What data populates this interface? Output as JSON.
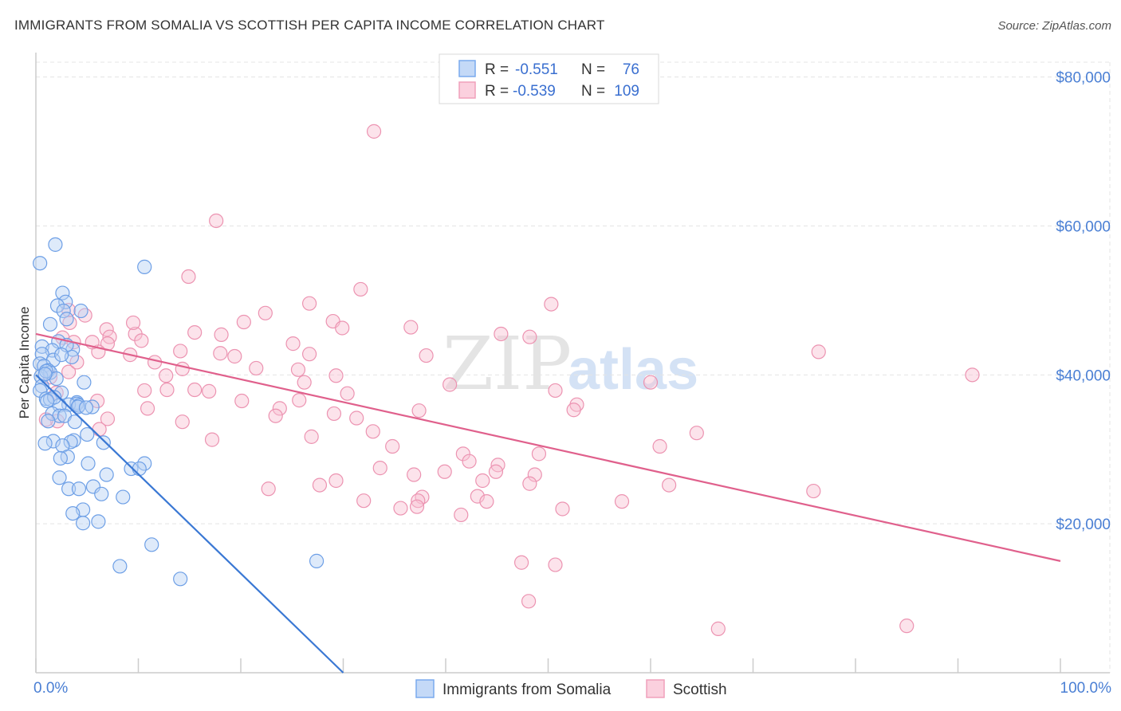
{
  "header": {
    "title": "IMMIGRANTS FROM SOMALIA VS SCOTTISH PER CAPITA INCOME CORRELATION CHART",
    "source": "Source: ZipAtlas.com"
  },
  "watermark": {
    "zip": "ZIP",
    "atlas": "atlas"
  },
  "legend": {
    "rows": [
      {
        "r_label": "R = ",
        "r_value": "-0.551",
        "n_label": "N = ",
        "n_value": "76",
        "color": "#7aaaee"
      },
      {
        "r_label": "R = ",
        "r_value": "-0.539",
        "n_label": "N = ",
        "n_value": "109",
        "color": "#f0a0bb"
      }
    ]
  },
  "bottom_legend": [
    "Immigrants from Somalia",
    "Scottish"
  ],
  "chart_data": {
    "type": "scatter",
    "title": "IMMIGRANTS FROM SOMALIA VS SCOTTISH PER CAPITA INCOME CORRELATION CHART",
    "ylabel": "Per Capita Income",
    "xlabel": "",
    "x_tick_labels": [
      "0.0%",
      "100.0%"
    ],
    "y_tick_labels": [
      "$20,000",
      "$40,000",
      "$60,000",
      "$80,000"
    ],
    "y_ticks": [
      20000,
      40000,
      60000,
      80000
    ],
    "xlim": [
      0,
      100
    ],
    "ylim": [
      0,
      82000
    ],
    "grid": true,
    "series": [
      {
        "name": "Immigrants from Somalia",
        "color": "#7aaaee",
        "line_color": "#3a78d4",
        "trend": {
          "x0": 0,
          "y0": 40000,
          "x1": 30,
          "y1": 0
        },
        "points": [
          [
            0.4,
            55000
          ],
          [
            1.9,
            57500
          ],
          [
            10.6,
            54500
          ],
          [
            2.6,
            51000
          ],
          [
            2.9,
            49800
          ],
          [
            2.1,
            49300
          ],
          [
            4.4,
            48600
          ],
          [
            2.7,
            48600
          ],
          [
            3.0,
            47500
          ],
          [
            1.4,
            46800
          ],
          [
            2.2,
            44500
          ],
          [
            0.6,
            43800
          ],
          [
            3.6,
            43400
          ],
          [
            1.6,
            43300
          ],
          [
            0.6,
            42800
          ],
          [
            3.5,
            42400
          ],
          [
            1.7,
            42000
          ],
          [
            0.4,
            41500
          ],
          [
            0.8,
            41200
          ],
          [
            1.2,
            40600
          ],
          [
            1.4,
            40300
          ],
          [
            0.5,
            39800
          ],
          [
            4.7,
            39000
          ],
          [
            0.6,
            38500
          ],
          [
            0.4,
            37900
          ],
          [
            2.5,
            37600
          ],
          [
            1.0,
            36800
          ],
          [
            1.4,
            36700
          ],
          [
            4.0,
            36300
          ],
          [
            4.0,
            36100
          ],
          [
            3.2,
            36000
          ],
          [
            4.2,
            35900
          ],
          [
            2.3,
            35900
          ],
          [
            4.1,
            35700
          ],
          [
            5.5,
            35700
          ],
          [
            4.9,
            35600
          ],
          [
            1.6,
            34800
          ],
          [
            2.3,
            34500
          ],
          [
            2.8,
            34500
          ],
          [
            1.2,
            33800
          ],
          [
            3.7,
            31200
          ],
          [
            1.7,
            31100
          ],
          [
            3.4,
            31000
          ],
          [
            0.9,
            30800
          ],
          [
            2.6,
            30500
          ],
          [
            3.1,
            29000
          ],
          [
            2.4,
            28800
          ],
          [
            5.1,
            28100
          ],
          [
            10.6,
            28100
          ],
          [
            9.3,
            27400
          ],
          [
            10.1,
            27400
          ],
          [
            6.9,
            26600
          ],
          [
            2.3,
            26200
          ],
          [
            5.6,
            25000
          ],
          [
            3.2,
            24700
          ],
          [
            4.2,
            24700
          ],
          [
            6.4,
            24000
          ],
          [
            8.5,
            23600
          ],
          [
            4.6,
            21900
          ],
          [
            3.6,
            21400
          ],
          [
            6.1,
            20300
          ],
          [
            4.6,
            20100
          ],
          [
            11.3,
            17200
          ],
          [
            8.2,
            14300
          ],
          [
            27.4,
            15000
          ],
          [
            14.1,
            12600
          ],
          [
            1.0,
            40500
          ],
          [
            2.0,
            39500
          ],
          [
            1.8,
            37000
          ],
          [
            5.0,
            32000
          ],
          [
            3.0,
            44000
          ],
          [
            0.9,
            40100
          ],
          [
            2.5,
            42700
          ],
          [
            3.8,
            33700
          ],
          [
            1.1,
            36500
          ],
          [
            6.6,
            30900
          ]
        ]
      },
      {
        "name": "Scottish",
        "color": "#f0a0bb",
        "line_color": "#e0608c",
        "trend": {
          "x0": 0,
          "y0": 45500,
          "x1": 100,
          "y1": 15000
        },
        "points": [
          [
            33.0,
            72700
          ],
          [
            17.6,
            60700
          ],
          [
            14.9,
            53200
          ],
          [
            31.7,
            51500
          ],
          [
            26.7,
            49600
          ],
          [
            50.3,
            49500
          ],
          [
            3.2,
            48700
          ],
          [
            4.8,
            48000
          ],
          [
            22.4,
            48300
          ],
          [
            29.0,
            47200
          ],
          [
            20.3,
            47100
          ],
          [
            36.6,
            46400
          ],
          [
            6.9,
            46100
          ],
          [
            29.9,
            46300
          ],
          [
            15.5,
            45700
          ],
          [
            9.7,
            45500
          ],
          [
            18.1,
            45400
          ],
          [
            45.4,
            45500
          ],
          [
            7.2,
            45100
          ],
          [
            2.6,
            45000
          ],
          [
            48.2,
            45100
          ],
          [
            10.3,
            44600
          ],
          [
            25.1,
            44200
          ],
          [
            7.0,
            44200
          ],
          [
            3.7,
            44400
          ],
          [
            14.1,
            43200
          ],
          [
            18.0,
            42900
          ],
          [
            26.7,
            42800
          ],
          [
            9.2,
            42700
          ],
          [
            19.4,
            42500
          ],
          [
            38.1,
            42600
          ],
          [
            76.4,
            43100
          ],
          [
            11.6,
            41700
          ],
          [
            14.3,
            40800
          ],
          [
            21.5,
            40900
          ],
          [
            25.6,
            40700
          ],
          [
            3.2,
            40400
          ],
          [
            12.7,
            39900
          ],
          [
            29.3,
            39900
          ],
          [
            91.4,
            40000
          ],
          [
            60.0,
            39000
          ],
          [
            26.2,
            39000
          ],
          [
            40.4,
            38700
          ],
          [
            15.5,
            38000
          ],
          [
            10.6,
            37900
          ],
          [
            12.8,
            38000
          ],
          [
            16.9,
            37800
          ],
          [
            50.7,
            37900
          ],
          [
            30.4,
            37500
          ],
          [
            25.7,
            36600
          ],
          [
            20.1,
            36500
          ],
          [
            6.0,
            36500
          ],
          [
            52.8,
            36000
          ],
          [
            23.8,
            35500
          ],
          [
            10.9,
            35500
          ],
          [
            37.4,
            35200
          ],
          [
            52.5,
            35300
          ],
          [
            29.1,
            34800
          ],
          [
            23.4,
            34500
          ],
          [
            31.3,
            34200
          ],
          [
            7.0,
            34100
          ],
          [
            2.1,
            33800
          ],
          [
            14.3,
            33700
          ],
          [
            6.2,
            32700
          ],
          [
            32.9,
            32400
          ],
          [
            17.2,
            31300
          ],
          [
            26.9,
            31700
          ],
          [
            64.5,
            32200
          ],
          [
            34.8,
            30400
          ],
          [
            60.9,
            30400
          ],
          [
            49.1,
            29400
          ],
          [
            41.7,
            29400
          ],
          [
            42.3,
            28400
          ],
          [
            45.1,
            27900
          ],
          [
            33.6,
            27500
          ],
          [
            44.9,
            27000
          ],
          [
            39.9,
            27000
          ],
          [
            36.9,
            26600
          ],
          [
            48.7,
            26600
          ],
          [
            43.6,
            25800
          ],
          [
            29.3,
            25800
          ],
          [
            27.7,
            25200
          ],
          [
            48.2,
            25400
          ],
          [
            61.8,
            25200
          ],
          [
            75.9,
            24400
          ],
          [
            22.7,
            24700
          ],
          [
            43.1,
            23700
          ],
          [
            37.7,
            23600
          ],
          [
            32.0,
            23100
          ],
          [
            37.3,
            23100
          ],
          [
            44.0,
            23000
          ],
          [
            57.2,
            23000
          ],
          [
            37.2,
            22300
          ],
          [
            35.6,
            22100
          ],
          [
            51.4,
            22000
          ],
          [
            41.5,
            21200
          ],
          [
            50.7,
            14500
          ],
          [
            47.4,
            14800
          ],
          [
            48.1,
            9600
          ],
          [
            66.6,
            5900
          ],
          [
            85.0,
            6300
          ],
          [
            9.5,
            47000
          ],
          [
            1.4,
            39700
          ],
          [
            4.0,
            41700
          ],
          [
            2.0,
            37600
          ],
          [
            6.1,
            43100
          ],
          [
            3.3,
            47000
          ],
          [
            5.5,
            44400
          ],
          [
            1.0,
            34000
          ]
        ]
      }
    ]
  }
}
